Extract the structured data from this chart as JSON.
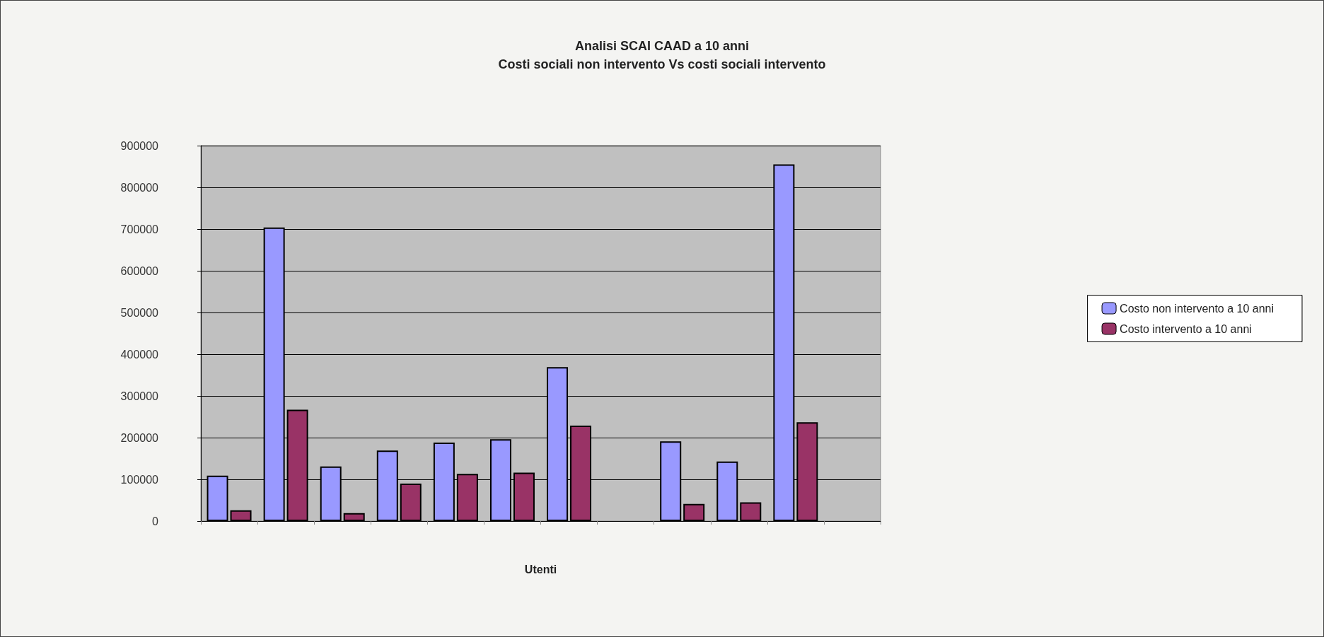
{
  "chart_data": {
    "type": "bar",
    "title": "Analisi SCAI CAAD a 10 anni",
    "subtitle": "Costi sociali non intervento Vs costi sociali intervento",
    "xlabel": "Utenti",
    "categories": [
      null,
      null,
      null,
      null,
      null,
      null,
      null,
      null,
      null,
      null,
      null,
      null
    ],
    "series": [
      {
        "name": "Costo non intervento a 10 anni",
        "color": "#9999ff",
        "values": [
          109000,
          704000,
          131000,
          169000,
          188000,
          196000,
          369000,
          null,
          191000,
          143000,
          855000,
          null
        ]
      },
      {
        "name": "Costo intervento a 10 anni",
        "color": "#993366",
        "values": [
          26000,
          267000,
          19000,
          90000,
          113000,
          116000,
          229000,
          null,
          41000,
          45000,
          237000,
          null
        ]
      }
    ],
    "ylim": [
      0,
      900000
    ],
    "yticks": [
      0,
      100000,
      200000,
      300000,
      400000,
      500000,
      600000,
      700000,
      800000,
      900000
    ],
    "grid": "y",
    "legend": "right"
  }
}
